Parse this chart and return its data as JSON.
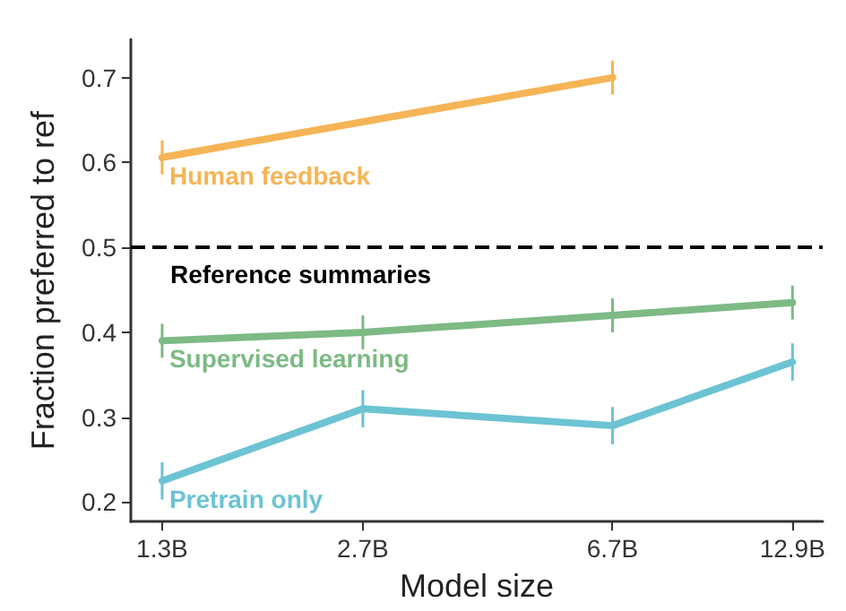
{
  "chart_data": {
    "type": "line",
    "xlabel": "Model size",
    "ylabel": "Fraction preferred to ref",
    "xlim": [
      1.16,
      14.4
    ],
    "xticks": [
      {
        "value": 1.3,
        "label": "1.3B"
      },
      {
        "value": 2.7,
        "label": "2.7B"
      },
      {
        "value": 6.7,
        "label": "6.7B"
      },
      {
        "value": 12.9,
        "label": "12.9B"
      }
    ],
    "ylim": [
      0.177,
      0.745
    ],
    "yticks": [
      0.2,
      0.3,
      0.4,
      0.5,
      0.6,
      0.7
    ],
    "log": "x",
    "grid": false,
    "legend": false,
    "marker": "none",
    "line_style": "solid",
    "series": [
      {
        "name": "Human feedback",
        "color": "#f5b456",
        "x": [
          1.3,
          6.7
        ],
        "values": [
          0.606,
          0.7
        ],
        "errors": [
          0.02,
          0.02
        ]
      },
      {
        "name": "Supervised learning",
        "color": "#7dba84",
        "x": [
          1.3,
          2.7,
          6.7,
          12.9
        ],
        "values": [
          0.39,
          0.4,
          0.42,
          0.435
        ],
        "errors": [
          0.02,
          0.02,
          0.02,
          0.02
        ]
      },
      {
        "name": "Pretrain only",
        "color": "#6cc3d3",
        "x": [
          1.3,
          2.7,
          6.7,
          12.9
        ],
        "values": [
          0.225,
          0.31,
          0.29,
          0.365
        ],
        "errors": [
          0.022,
          0.022,
          0.022,
          0.022
        ]
      }
    ],
    "ref_lines": [
      {
        "axis": "y",
        "value": 0.5,
        "label": "Reference summaries",
        "color": "#000000",
        "line_style": "dashed"
      }
    ]
  }
}
